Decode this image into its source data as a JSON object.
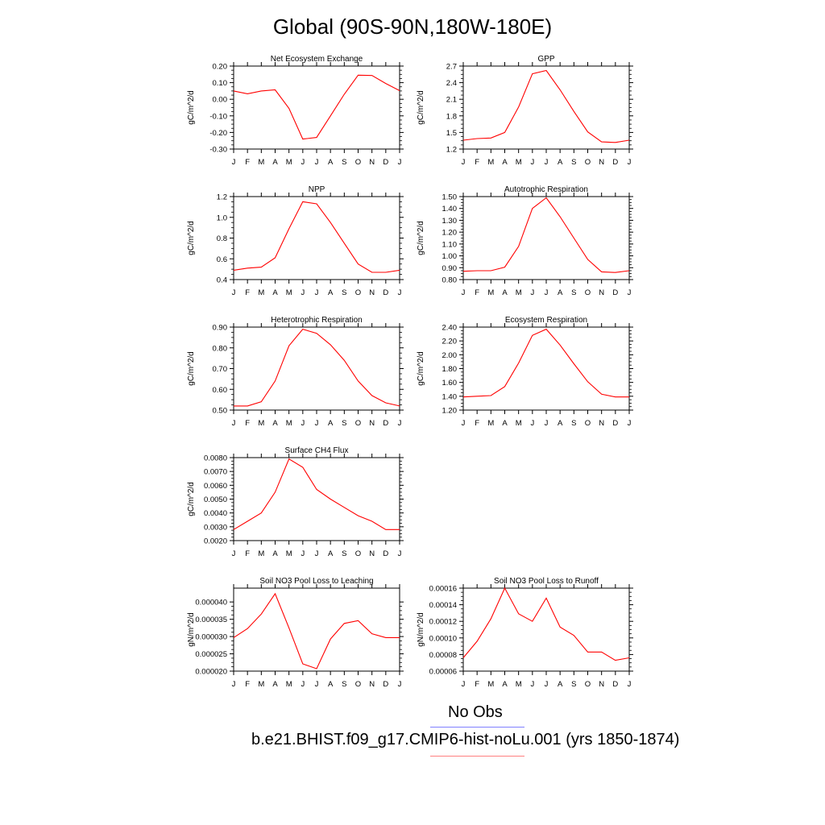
{
  "page": {
    "title": "Global (90S-90N,180W-180E)"
  },
  "months": [
    "J",
    "F",
    "M",
    "A",
    "M",
    "J",
    "J",
    "A",
    "S",
    "O",
    "N",
    "D",
    "J"
  ],
  "legend": [
    {
      "label": "No Obs",
      "color": "#8080ff"
    },
    {
      "label": "b.e21.BHIST.f09_g17.CMIP6-hist-noLu.001 (yrs 1850-1874)",
      "color": "#ff8080"
    }
  ],
  "chart_data": [
    {
      "type": "line",
      "title": "Net Ecosystem Exchange",
      "ylabel": "gC/m^2/d",
      "ylim": [
        -0.3,
        0.2
      ],
      "yticks": [
        -0.3,
        -0.2,
        -0.1,
        0.0,
        0.1,
        0.2
      ],
      "ytick_labels": [
        "-0.30",
        "-0.20",
        "-0.10",
        "0.00",
        "0.10",
        "0.20"
      ],
      "series": [
        {
          "color": "#ff0000",
          "values": [
            0.05,
            0.033,
            0.05,
            0.057,
            -0.055,
            -0.24,
            -0.23,
            -0.1,
            0.03,
            0.145,
            0.143,
            0.095,
            0.052
          ]
        }
      ]
    },
    {
      "type": "line",
      "title": "GPP",
      "ylabel": "gC/m^2/d",
      "ylim": [
        1.2,
        2.7
      ],
      "yticks": [
        1.2,
        1.5,
        1.8,
        2.1,
        2.4,
        2.7
      ],
      "ytick_labels": [
        "1.2",
        "1.5",
        "1.8",
        "2.1",
        "2.4",
        "2.7"
      ],
      "series": [
        {
          "color": "#ff0000",
          "values": [
            1.36,
            1.39,
            1.4,
            1.5,
            1.96,
            2.56,
            2.62,
            2.27,
            1.88,
            1.51,
            1.33,
            1.32,
            1.36
          ]
        }
      ]
    },
    {
      "type": "line",
      "title": "NPP",
      "ylabel": "gC/m^2/d",
      "ylim": [
        0.4,
        1.2
      ],
      "yticks": [
        0.4,
        0.6,
        0.8,
        1.0,
        1.2
      ],
      "ytick_labels": [
        "0.4",
        "0.6",
        "0.8",
        "1.0",
        "1.2"
      ],
      "series": [
        {
          "color": "#ff0000",
          "values": [
            0.49,
            0.51,
            0.52,
            0.61,
            0.89,
            1.15,
            1.13,
            0.95,
            0.75,
            0.55,
            0.47,
            0.47,
            0.49
          ]
        }
      ]
    },
    {
      "type": "line",
      "title": "Autotrophic Respiration",
      "ylabel": "gC/m^2/d",
      "ylim": [
        0.8,
        1.5
      ],
      "yticks": [
        0.8,
        0.9,
        1.0,
        1.1,
        1.2,
        1.3,
        1.4,
        1.5
      ],
      "ytick_labels": [
        "0.80",
        "0.90",
        "1.00",
        "1.10",
        "1.20",
        "1.30",
        "1.40",
        "1.50"
      ],
      "series": [
        {
          "color": "#ff0000",
          "values": [
            0.87,
            0.875,
            0.875,
            0.905,
            1.08,
            1.4,
            1.49,
            1.33,
            1.15,
            0.97,
            0.865,
            0.86,
            0.875
          ]
        }
      ]
    },
    {
      "type": "line",
      "title": "Heterotrophic Respiration",
      "ylabel": "gC/m^2/d",
      "ylim": [
        0.5,
        0.9
      ],
      "yticks": [
        0.5,
        0.6,
        0.7,
        0.8,
        0.9
      ],
      "ytick_labels": [
        "0.50",
        "0.60",
        "0.70",
        "0.80",
        "0.90"
      ],
      "series": [
        {
          "color": "#ff0000",
          "values": [
            0.52,
            0.52,
            0.54,
            0.64,
            0.81,
            0.89,
            0.87,
            0.815,
            0.74,
            0.64,
            0.57,
            0.535,
            0.52
          ]
        }
      ]
    },
    {
      "type": "line",
      "title": "Ecosystem Respiration",
      "ylabel": "gC/m^2/d",
      "ylim": [
        1.2,
        2.4
      ],
      "yticks": [
        1.2,
        1.4,
        1.6,
        1.8,
        2.0,
        2.2,
        2.4
      ],
      "ytick_labels": [
        "1.20",
        "1.40",
        "1.60",
        "1.80",
        "2.00",
        "2.20",
        "2.40"
      ],
      "series": [
        {
          "color": "#ff0000",
          "values": [
            1.39,
            1.4,
            1.41,
            1.54,
            1.88,
            2.28,
            2.37,
            2.14,
            1.87,
            1.61,
            1.43,
            1.39,
            1.39
          ]
        }
      ]
    },
    {
      "type": "line",
      "title": "Surface CH4 Flux",
      "ylabel": "gC/m^2/d",
      "ylim": [
        0.002,
        0.008
      ],
      "yticks": [
        0.002,
        0.003,
        0.004,
        0.005,
        0.006,
        0.007,
        0.008
      ],
      "ytick_labels": [
        "0.0020",
        "0.0030",
        "0.0040",
        "0.0050",
        "0.0060",
        "0.0070",
        "0.0080"
      ],
      "series": [
        {
          "color": "#ff0000",
          "values": [
            0.0028,
            0.0034,
            0.004,
            0.0055,
            0.0079,
            0.0073,
            0.0057,
            0.005,
            0.0044,
            0.0038,
            0.0034,
            0.0028,
            0.0028
          ]
        }
      ]
    },
    {
      "type": "line",
      "title": "Soil NO3 Pool Loss to Leaching",
      "ylabel": "gN/m^2/d",
      "ylim": [
        2e-05,
        4.4e-05
      ],
      "yticks": [
        2e-05,
        2.5e-05,
        3e-05,
        3.5e-05,
        4e-05
      ],
      "ytick_labels": [
        "0.000020",
        "0.000025",
        "0.000030",
        "0.000035",
        "0.000040"
      ],
      "series": [
        {
          "color": "#ff0000",
          "values": [
            2.97e-05,
            3.23e-05,
            3.65e-05,
            4.24e-05,
            3.25e-05,
            2.21e-05,
            2.07e-05,
            2.93e-05,
            3.38e-05,
            3.46e-05,
            3.08e-05,
            2.97e-05,
            2.97e-05
          ]
        }
      ]
    },
    {
      "type": "line",
      "title": "Soil NO3 Pool Loss to Runoff",
      "ylabel": "gN/m^2/d",
      "ylim": [
        6e-05,
        0.00016
      ],
      "yticks": [
        6e-05,
        8e-05,
        0.0001,
        0.00012,
        0.00014,
        0.00016
      ],
      "ytick_labels": [
        "0.00006",
        "0.00008",
        "0.00010",
        "0.00012",
        "0.00014",
        "0.00016"
      ],
      "series": [
        {
          "color": "#ff0000",
          "values": [
            7.6e-05,
            9.6e-05,
            0.000123,
            0.00016,
            0.000129,
            0.00012,
            0.000148,
            0.000113,
            0.000103,
            8.3e-05,
            8.3e-05,
            7.3e-05,
            7.6e-05
          ]
        }
      ]
    }
  ]
}
